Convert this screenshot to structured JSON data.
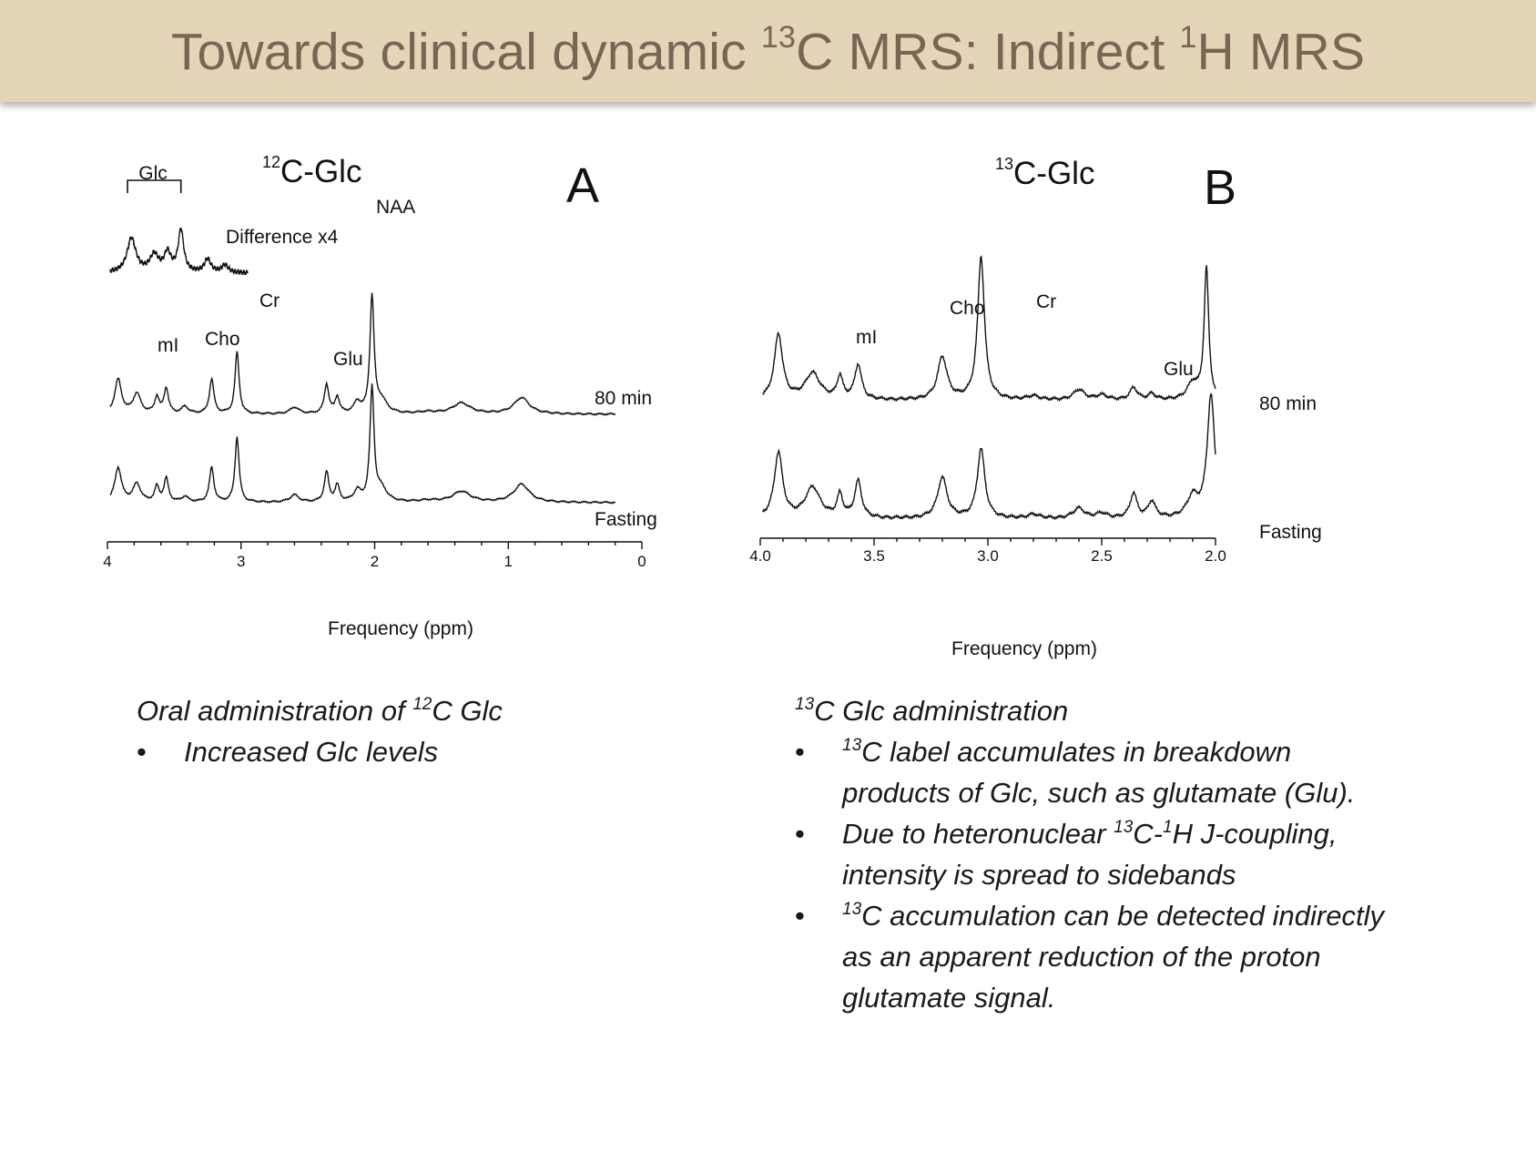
{
  "slide": {
    "title_part1": "Towards clinical dynamic ",
    "title_sup1": "13",
    "title_part2": "C MRS: Indirect ",
    "title_sup2": "1",
    "title_part3": "H MRS"
  },
  "colors": {
    "title_bg": "#e4d4b8",
    "title_text": "#7a6555",
    "trace": "#111111"
  },
  "chart_data": [
    {
      "type": "line",
      "panel": "A",
      "title_sup": "12",
      "title": "C-Glc",
      "xlabel": "Frequency (ppm)",
      "xlim": [
        4,
        0
      ],
      "x_reversed": true,
      "xticks": [
        "4",
        "3",
        "2",
        "1",
        "0"
      ],
      "ylabel": "",
      "bracket_label": "Glc",
      "bracket_range": [
        3.85,
        3.45
      ],
      "series": [
        {
          "name": "80 min",
          "baseline": 0,
          "peaks": [
            [
              3.92,
              0.95,
              0.03
            ],
            [
              3.78,
              0.55,
              0.035
            ],
            [
              3.63,
              0.45,
              0.02
            ],
            [
              3.56,
              0.7,
              0.02
            ],
            [
              3.42,
              0.2,
              0.03
            ],
            [
              3.22,
              0.95,
              0.02
            ],
            [
              3.03,
              1.7,
              0.018
            ],
            [
              2.6,
              0.18,
              0.04
            ],
            [
              2.36,
              0.8,
              0.02
            ],
            [
              2.28,
              0.45,
              0.02
            ],
            [
              2.13,
              0.3,
              0.03
            ],
            [
              2.02,
              3.2,
              0.018
            ],
            [
              1.95,
              0.35,
              0.05
            ],
            [
              1.6,
              0.05,
              0.08
            ],
            [
              1.35,
              0.3,
              0.08
            ],
            [
              0.9,
              0.45,
              0.07
            ]
          ]
        },
        {
          "name": "Fasting",
          "baseline": 0,
          "peaks": [
            [
              3.92,
              0.95,
              0.03
            ],
            [
              3.78,
              0.5,
              0.035
            ],
            [
              3.63,
              0.42,
              0.02
            ],
            [
              3.56,
              0.65,
              0.02
            ],
            [
              3.42,
              0.15,
              0.03
            ],
            [
              3.22,
              0.95,
              0.02
            ],
            [
              3.03,
              1.8,
              0.018
            ],
            [
              2.6,
              0.2,
              0.04
            ],
            [
              2.36,
              0.82,
              0.02
            ],
            [
              2.28,
              0.45,
              0.02
            ],
            [
              2.13,
              0.3,
              0.03
            ],
            [
              2.02,
              3.1,
              0.018
            ],
            [
              1.95,
              0.35,
              0.05
            ],
            [
              1.6,
              0.05,
              0.08
            ],
            [
              1.35,
              0.3,
              0.08
            ],
            [
              0.9,
              0.5,
              0.07
            ]
          ]
        },
        {
          "name": "Difference x4",
          "baseline": 0,
          "peaks": [
            [
              3.82,
              0.9,
              0.04
            ],
            [
              3.65,
              0.45,
              0.04
            ],
            [
              3.55,
              0.5,
              0.03
            ],
            [
              3.45,
              1.1,
              0.025
            ],
            [
              3.25,
              0.35,
              0.03
            ],
            [
              3.12,
              0.2,
              0.03
            ]
          ]
        }
      ],
      "annotations": [
        "NAA",
        "Cr",
        "Cho",
        "mI",
        "Glu",
        "Glc",
        "Difference x4",
        "80 min",
        "Fasting"
      ],
      "panel_label": "A"
    },
    {
      "type": "line",
      "panel": "B",
      "title_sup": "13",
      "title": "C-Glc",
      "xlabel": "Frequency (ppm)",
      "xlim": [
        4.0,
        2.0
      ],
      "x_reversed": true,
      "xticks": [
        "4.0",
        "3.5",
        "3.0",
        "2.5",
        "2.0"
      ],
      "ylabel": "",
      "series": [
        {
          "name": "80 min",
          "baseline": 0,
          "peaks": [
            [
              3.92,
              1.6,
              0.022
            ],
            [
              3.77,
              0.65,
              0.04
            ],
            [
              3.65,
              0.55,
              0.015
            ],
            [
              3.57,
              0.85,
              0.018
            ],
            [
              3.2,
              1.05,
              0.025
            ],
            [
              3.03,
              3.5,
              0.018
            ],
            [
              2.8,
              0.1,
              0.03
            ],
            [
              2.6,
              0.25,
              0.03
            ],
            [
              2.5,
              0.12,
              0.03
            ],
            [
              2.36,
              0.3,
              0.02
            ],
            [
              2.28,
              0.15,
              0.02
            ],
            [
              2.1,
              0.4,
              0.03
            ],
            [
              2.04,
              3.2,
              0.012
            ]
          ]
        },
        {
          "name": "Fasting",
          "baseline": 0,
          "peaks": [
            [
              3.92,
              1.6,
              0.022
            ],
            [
              3.77,
              0.75,
              0.04
            ],
            [
              3.65,
              0.55,
              0.015
            ],
            [
              3.57,
              0.9,
              0.018
            ],
            [
              3.2,
              1.0,
              0.025
            ],
            [
              3.03,
              1.7,
              0.02
            ],
            [
              2.8,
              0.1,
              0.03
            ],
            [
              2.6,
              0.25,
              0.03
            ],
            [
              2.5,
              0.12,
              0.03
            ],
            [
              2.36,
              0.6,
              0.018
            ],
            [
              2.28,
              0.4,
              0.02
            ],
            [
              2.1,
              0.5,
              0.03
            ],
            [
              2.02,
              3.0,
              0.02
            ]
          ]
        }
      ],
      "annotations": [
        "Cr",
        "Cho",
        "mI",
        "Glu",
        "80 min",
        "Fasting"
      ],
      "panel_label": "B"
    }
  ],
  "captions": {
    "left": {
      "heading_pre": "Oral administration of ",
      "heading_sup": "12",
      "heading_post": "C Glc",
      "bullets": [
        {
          "pre": "",
          "sup": "",
          "text": "Increased Glc levels"
        }
      ]
    },
    "right": {
      "heading_pre": "",
      "heading_sup": "13",
      "heading_post": "C Glc administration",
      "bullets": [
        {
          "sup": "13",
          "text": "C label accumulates in breakdown products of Glc, such as glutamate (Glu)."
        },
        {
          "pre": "Due to heteronuclear ",
          "sup": "13",
          "mid": "C-",
          "sup2": "1",
          "text": "H J-coupling, intensity is spread to sidebands"
        },
        {
          "sup": "13",
          "text": "C accumulation can be detected indirectly as an apparent reduction of the proton glutamate signal."
        }
      ]
    },
    "bullet_char": "•"
  }
}
